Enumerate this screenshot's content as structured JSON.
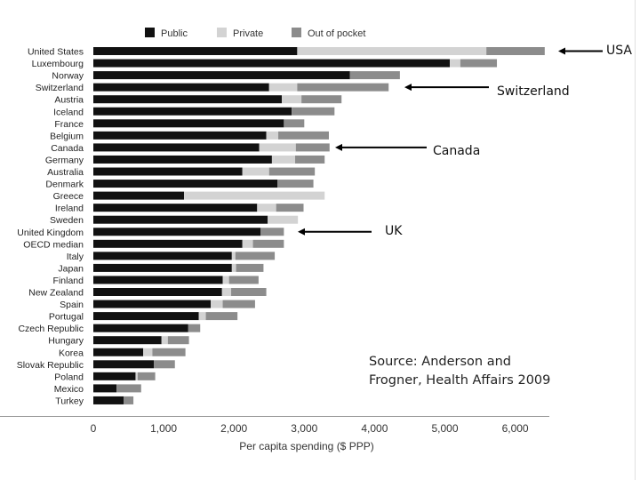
{
  "chart_data": {
    "type": "bar",
    "stacked": true,
    "orientation": "horizontal",
    "categories": [
      "United States",
      "Luxembourg",
      "Norway",
      "Switzerland",
      "Austria",
      "Iceland",
      "France",
      "Belgium",
      "Canada",
      "Germany",
      "Australia",
      "Denmark",
      "Greece",
      "Ireland",
      "Sweden",
      "United Kingdom",
      "OECD median",
      "Italy",
      "Japan",
      "Finland",
      "New Zealand",
      "Spain",
      "Portugal",
      "Czech Republic",
      "Hungary",
      "Korea",
      "Slovak Republic",
      "Poland",
      "Mexico",
      "Turkey"
    ],
    "series": [
      {
        "name": "Public",
        "color": "#111111",
        "values": [
          2900,
          5070,
          3650,
          2500,
          2680,
          2820,
          2710,
          2460,
          2360,
          2540,
          2120,
          2620,
          1290,
          2330,
          2480,
          2380,
          2120,
          1970,
          1970,
          1840,
          1830,
          1670,
          1500,
          1350,
          970,
          710,
          860,
          600,
          330,
          430
        ]
      },
      {
        "name": "Private",
        "color": "#d3d3d3",
        "values": [
          2690,
          150,
          0,
          400,
          280,
          0,
          0,
          170,
          520,
          330,
          380,
          0,
          2000,
          270,
          430,
          0,
          150,
          50,
          60,
          90,
          130,
          170,
          100,
          0,
          90,
          130,
          0,
          30,
          0,
          0
        ]
      },
      {
        "name": "Out of pocket",
        "color": "#8c8c8c",
        "values": [
          830,
          520,
          710,
          1300,
          570,
          610,
          290,
          720,
          480,
          420,
          650,
          510,
          0,
          390,
          0,
          330,
          440,
          560,
          390,
          420,
          500,
          460,
          450,
          170,
          300,
          470,
          300,
          250,
          350,
          140
        ]
      }
    ],
    "xlabel": "Per capita spending ($ PPP)",
    "xticks": [
      "0",
      "1,000",
      "2,000",
      "3,000",
      "4,000",
      "5,000",
      "6,000"
    ],
    "xlim": [
      0,
      6400
    ],
    "legend_position": "top",
    "grid": false
  },
  "annotations": [
    {
      "label": "USA",
      "target": "United States"
    },
    {
      "label": "Switzerland",
      "target": "Switzerland"
    },
    {
      "label": "Canada",
      "target": "Canada"
    },
    {
      "label": "UK",
      "target": "United Kingdom"
    }
  ],
  "source": {
    "line1": "Source: Anderson and",
    "line2": "Frogner, Health Affairs 2009"
  }
}
